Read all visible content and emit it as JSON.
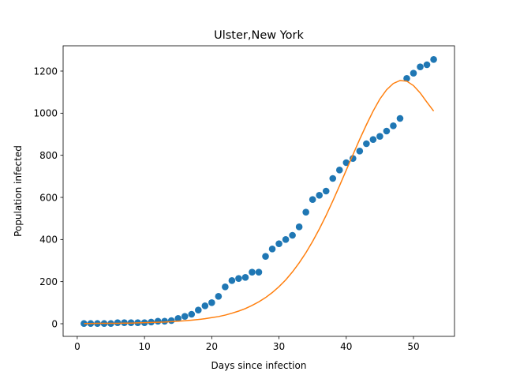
{
  "chart_data": {
    "type": "scatter",
    "title": "Ulster,New York",
    "xlabel": "Days since infection",
    "ylabel": "Population infected",
    "xlim": [
      -2.1,
      56.1
    ],
    "ylim": [
      -60,
      1320
    ],
    "xticks": [
      0,
      10,
      20,
      30,
      40,
      50
    ],
    "yticks": [
      0,
      200,
      400,
      600,
      800,
      1000,
      1200
    ],
    "grid": false,
    "legend": "none",
    "series": [
      {
        "kind": "scatter",
        "color": "#1f77b4",
        "x": [
          1,
          2,
          3,
          4,
          5,
          6,
          7,
          8,
          9,
          10,
          11,
          12,
          13,
          14,
          15,
          16,
          17,
          18,
          19,
          20,
          21,
          22,
          23,
          24,
          25,
          26,
          27,
          28,
          29,
          30,
          31,
          32,
          33,
          34,
          35,
          36,
          37,
          38,
          39,
          40,
          41,
          42,
          43,
          44,
          45,
          46,
          47,
          48,
          49,
          50,
          51,
          52,
          53
        ],
        "y": [
          1,
          1,
          1,
          1,
          1,
          5,
          5,
          5,
          5,
          5,
          8,
          12,
          12,
          15,
          25,
          35,
          45,
          65,
          85,
          100,
          130,
          175,
          205,
          215,
          220,
          245,
          245,
          320,
          355,
          380,
          400,
          420,
          460,
          530,
          590,
          610,
          630,
          690,
          730,
          765,
          785,
          820,
          855,
          875,
          890,
          915,
          940,
          975,
          1165,
          1190,
          1220,
          1230,
          1255
        ]
      },
      {
        "kind": "line",
        "color": "#ff7f0e",
        "x": [
          1,
          2,
          3,
          4,
          5,
          6,
          7,
          8,
          9,
          10,
          11,
          12,
          13,
          14,
          15,
          16,
          17,
          18,
          19,
          20,
          21,
          22,
          23,
          24,
          25,
          26,
          27,
          28,
          29,
          30,
          31,
          32,
          33,
          34,
          35,
          36,
          37,
          38,
          39,
          40,
          41,
          42,
          43,
          44,
          45,
          46,
          47,
          48,
          49,
          50,
          51,
          52,
          53
        ],
        "y": [
          1,
          1,
          2,
          2,
          2,
          2,
          3,
          3,
          4,
          5,
          6,
          7,
          8,
          10,
          12,
          14,
          17,
          20,
          24,
          29,
          34,
          41,
          50,
          60,
          72,
          87,
          104,
          124,
          148,
          176,
          208,
          246,
          289,
          337,
          391,
          450,
          514,
          583,
          655,
          729,
          803,
          876,
          945,
          1010,
          1067,
          1111,
          1141,
          1155,
          1152,
          1131,
          1096,
          1052,
          1010
        ]
      }
    ]
  }
}
